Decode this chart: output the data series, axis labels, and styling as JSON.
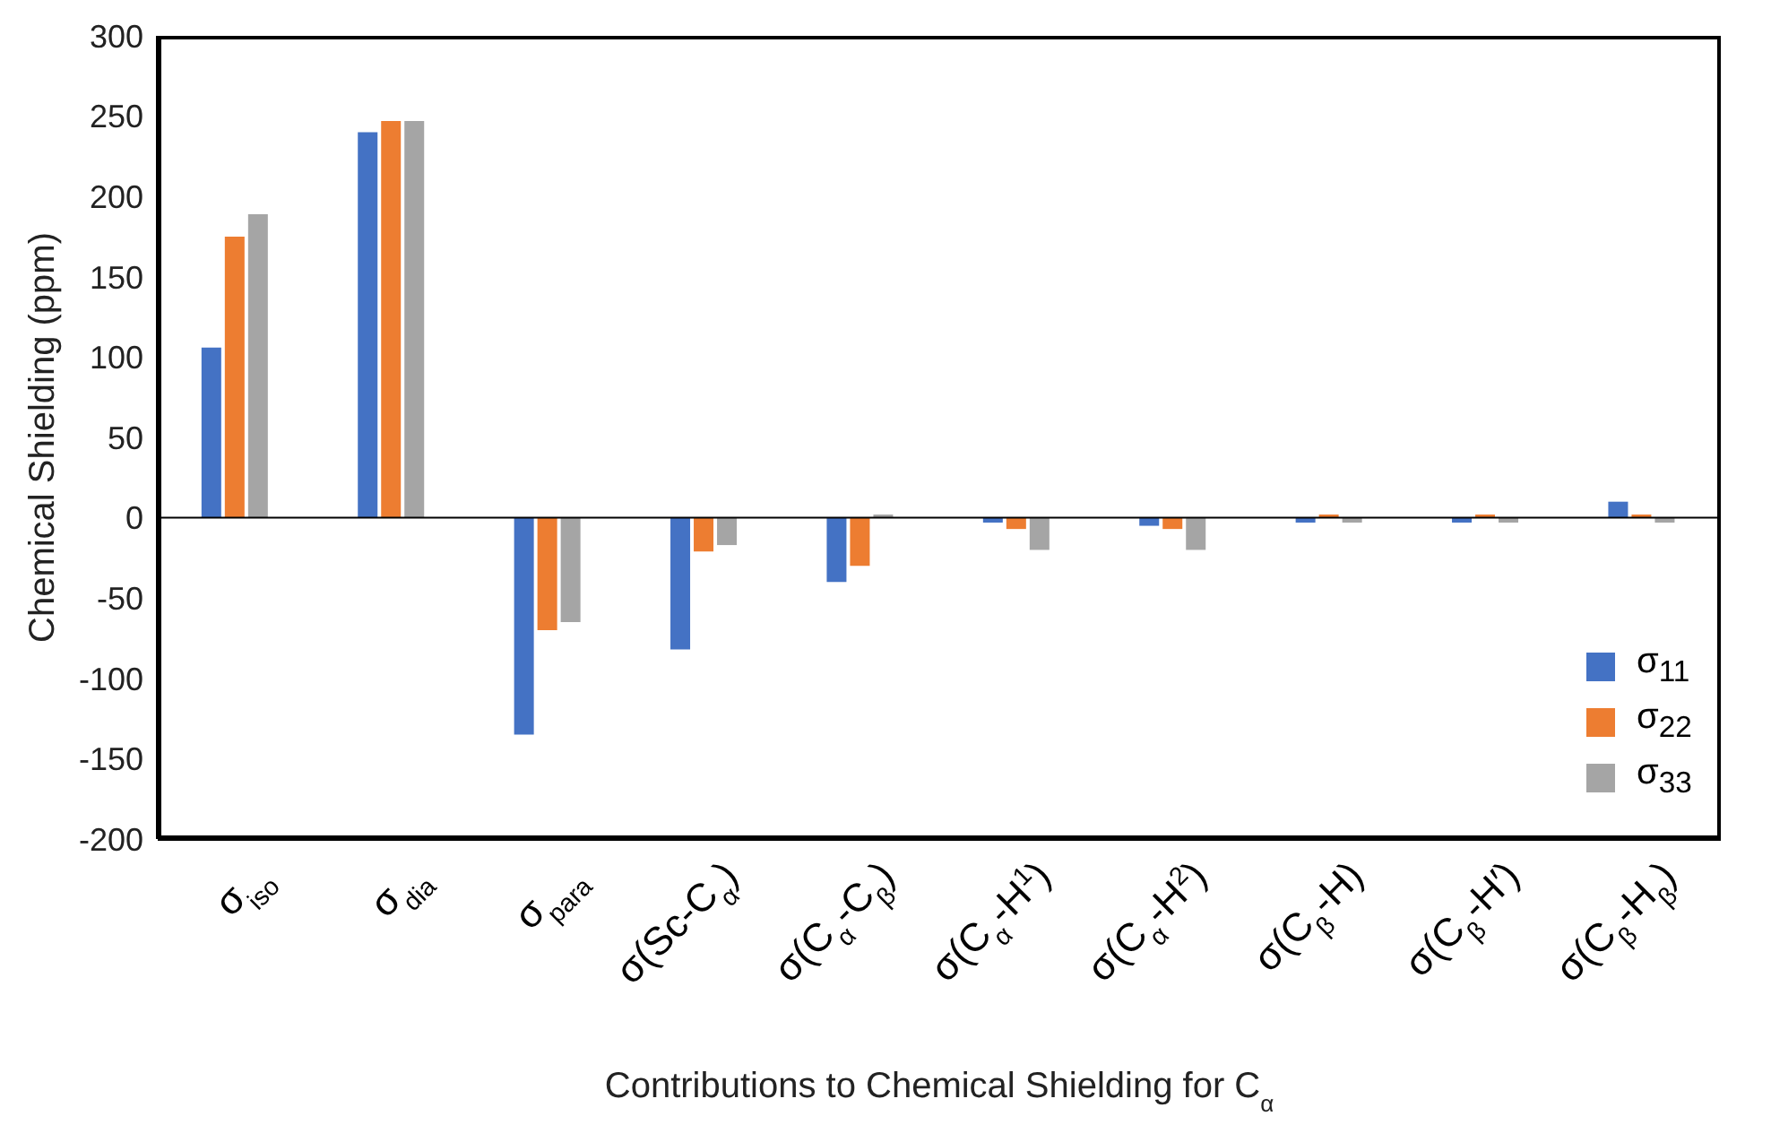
{
  "chart_data": {
    "type": "bar",
    "xlabel": "Contributions to Chemical Shielding for C$_{α}$",
    "ylabel": "Chemical Shielding (ppm)",
    "categories": [
      "σ$_{iso}$",
      "σ$_{dia}$",
      "σ$_{para}$",
      "σ(Sc-C$_{α}$)",
      "σ(C$_{α}$-C$_{β}$)",
      "σ(C$_{α}$-H$^{1}$)",
      "σ(C$_{α}$-H$^{2}$)",
      "σ(C$_{β}$-H)",
      "σ(C$_{β}$-H′)",
      "σ(C$_{β}$-H$_{β}$)"
    ],
    "series": [
      {
        "name": "σ$_{11}$",
        "color": "#4472c4",
        "values": [
          106,
          240,
          -135,
          -82,
          -40,
          -3,
          -5,
          -3,
          -3,
          10
        ]
      },
      {
        "name": "σ$_{22}$",
        "color": "#ed7d31",
        "values": [
          175,
          247,
          -70,
          -21,
          -30,
          -7,
          -7,
          2,
          2,
          2
        ]
      },
      {
        "name": "σ$_{33}$",
        "color": "#a5a5a5",
        "values": [
          189,
          247,
          -65,
          -17,
          2,
          -20,
          -20,
          -3,
          -3,
          -3
        ]
      }
    ],
    "ylim": [
      -200,
      300
    ],
    "yticks": [
      -200,
      -150,
      -100,
      -50,
      0,
      50,
      100,
      150,
      200,
      250,
      300
    ],
    "legend": "bottom right"
  }
}
